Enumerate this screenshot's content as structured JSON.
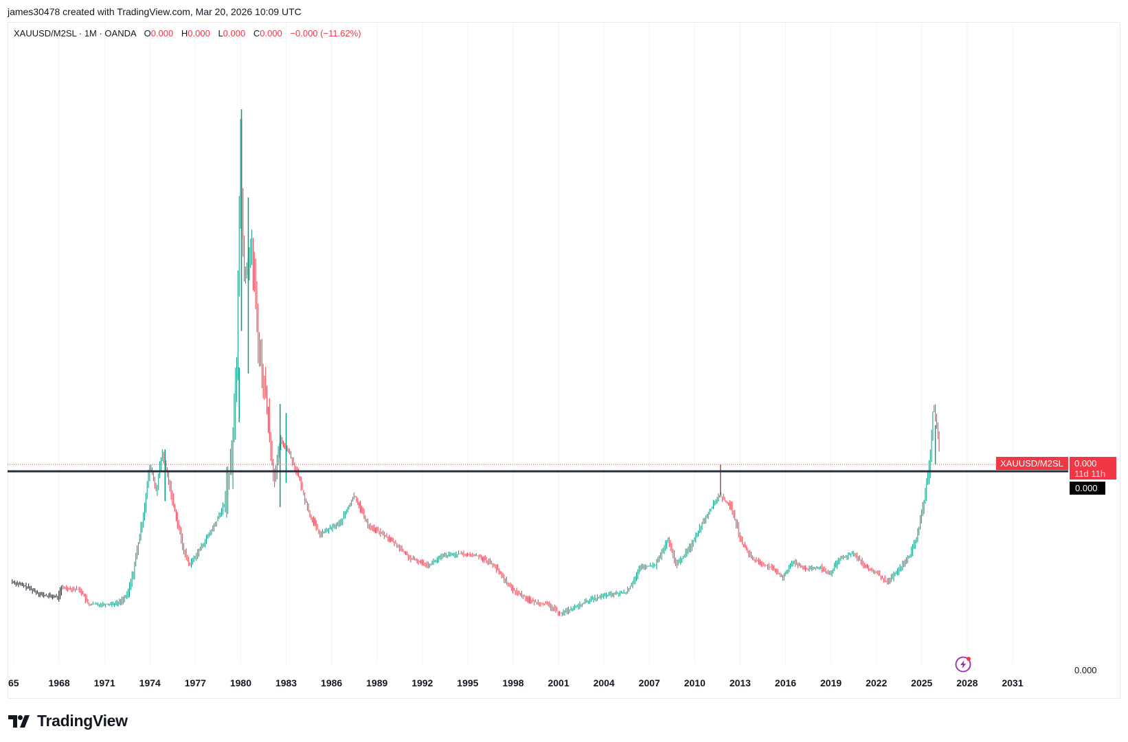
{
  "header": {
    "attribution": "james30478 created with TradingView.com, Mar 20, 2026 10:09 UTC"
  },
  "legend": {
    "symbol": "XAUUSD/M2SL · 1M · OANDA",
    "o_label": "O",
    "o_value": "0.000",
    "h_label": "H",
    "h_value": "0.000",
    "l_label": "L",
    "l_value": "0.000",
    "c_label": "C",
    "c_value": "0.000",
    "change": "−0.000 (−11.62%)"
  },
  "price_scale": {
    "label": "0.000"
  },
  "price_tag": {
    "symbol": "XAUUSD/M2SL",
    "value": "0.000",
    "countdown": "11d 11h"
  },
  "crosshair_tag": {
    "value": "0.000"
  },
  "footer": {
    "brand": "TradingView"
  },
  "colors": {
    "up": "#089981",
    "down": "#f23645",
    "level_line": "#2a2e39",
    "grid": "#f0f3fa"
  },
  "chart_data": {
    "type": "candlestick",
    "title": "",
    "symbol": "XAUUSD/M2SL",
    "interval": "1M",
    "xlim": [
      1965,
      2033
    ],
    "x_ticks": [
      "65",
      "1968",
      "1971",
      "1974",
      "1977",
      "1980",
      "1983",
      "1986",
      "1989",
      "1992",
      "1995",
      "1998",
      "2001",
      "2004",
      "2007",
      "2010",
      "2013",
      "2016",
      "2019",
      "2022",
      "2025",
      "2028",
      "2031"
    ],
    "ylim": [
      0,
      1.0
    ],
    "y_unit": "relative ratio (axis labels all read 0.000)",
    "horizontal_level": 0.337,
    "series": [
      {
        "path": [
          [
            1964.9,
            0.138
          ],
          [
            1966.0,
            0.128
          ],
          [
            1967.0,
            0.115
          ],
          [
            1968.0,
            0.112
          ],
          [
            1968.3,
            0.128
          ],
          [
            1969.5,
            0.124
          ],
          [
            1970.0,
            0.1
          ],
          [
            1971.0,
            0.1
          ],
          [
            1972.0,
            0.102
          ],
          [
            1972.6,
            0.115
          ],
          [
            1973.0,
            0.155
          ],
          [
            1973.6,
            0.24
          ],
          [
            1974.1,
            0.33
          ],
          [
            1974.5,
            0.285
          ],
          [
            1974.9,
            0.35
          ],
          [
            1975.6,
            0.27
          ],
          [
            1976.3,
            0.19
          ],
          [
            1976.7,
            0.165
          ],
          [
            1977.5,
            0.195
          ],
          [
            1978.4,
            0.232
          ],
          [
            1979.0,
            0.265
          ],
          [
            1979.5,
            0.345
          ],
          [
            1979.8,
            0.48
          ],
          [
            1980.05,
            0.87
          ],
          [
            1980.3,
            0.64
          ],
          [
            1980.8,
            0.69
          ],
          [
            1981.3,
            0.52
          ],
          [
            1981.8,
            0.43
          ],
          [
            1982.3,
            0.3
          ],
          [
            1982.7,
            0.37
          ],
          [
            1983.2,
            0.355
          ],
          [
            1983.9,
            0.31
          ],
          [
            1984.6,
            0.25
          ],
          [
            1985.3,
            0.215
          ],
          [
            1986.0,
            0.225
          ],
          [
            1986.7,
            0.235
          ],
          [
            1987.6,
            0.28
          ],
          [
            1988.5,
            0.23
          ],
          [
            1989.5,
            0.215
          ],
          [
            1990.3,
            0.2
          ],
          [
            1991.3,
            0.175
          ],
          [
            1992.5,
            0.165
          ],
          [
            1993.5,
            0.18
          ],
          [
            1994.5,
            0.183
          ],
          [
            1995.8,
            0.18
          ],
          [
            1996.8,
            0.165
          ],
          [
            1998.0,
            0.125
          ],
          [
            1999.3,
            0.105
          ],
          [
            2000.3,
            0.1
          ],
          [
            2001.2,
            0.085
          ],
          [
            2002.2,
            0.095
          ],
          [
            2003.2,
            0.108
          ],
          [
            2004.3,
            0.115
          ],
          [
            2005.6,
            0.12
          ],
          [
            2006.5,
            0.16
          ],
          [
            2007.5,
            0.165
          ],
          [
            2008.3,
            0.205
          ],
          [
            2008.9,
            0.165
          ],
          [
            2009.8,
            0.195
          ],
          [
            2010.6,
            0.235
          ],
          [
            2011.7,
            0.28
          ],
          [
            2012.5,
            0.26
          ],
          [
            2013.2,
            0.2
          ],
          [
            2013.9,
            0.175
          ],
          [
            2015.1,
            0.16
          ],
          [
            2015.9,
            0.145
          ],
          [
            2016.6,
            0.17
          ],
          [
            2017.5,
            0.158
          ],
          [
            2018.4,
            0.16
          ],
          [
            2019.0,
            0.15
          ],
          [
            2019.7,
            0.175
          ],
          [
            2020.6,
            0.185
          ],
          [
            2021.4,
            0.16
          ],
          [
            2022.2,
            0.15
          ],
          [
            2022.8,
            0.135
          ],
          [
            2023.5,
            0.155
          ],
          [
            2024.3,
            0.18
          ],
          [
            2024.8,
            0.215
          ],
          [
            2025.2,
            0.265
          ],
          [
            2025.6,
            0.33
          ],
          [
            2025.85,
            0.43
          ],
          [
            2026.05,
            0.4
          ],
          [
            2026.2,
            0.36
          ]
        ]
      }
    ],
    "spikes": [
      {
        "x": 1980.05,
        "high": 0.915,
        "low": 0.55
      },
      {
        "x": 1980.5,
        "high": 0.77,
        "low": 0.48
      },
      {
        "x": 1982.6,
        "high": 0.43,
        "low": 0.26
      },
      {
        "x": 1983.0,
        "high": 0.415,
        "low": 0.3
      },
      {
        "x": 1975.0,
        "high": 0.355,
        "low": 0.27
      },
      {
        "x": 1979.9,
        "high": 0.49,
        "low": 0.4
      },
      {
        "x": 2011.7,
        "high": 0.33,
        "low": 0.28
      },
      {
        "x": 2025.9,
        "high": 0.395,
        "low": 0.33
      }
    ]
  }
}
